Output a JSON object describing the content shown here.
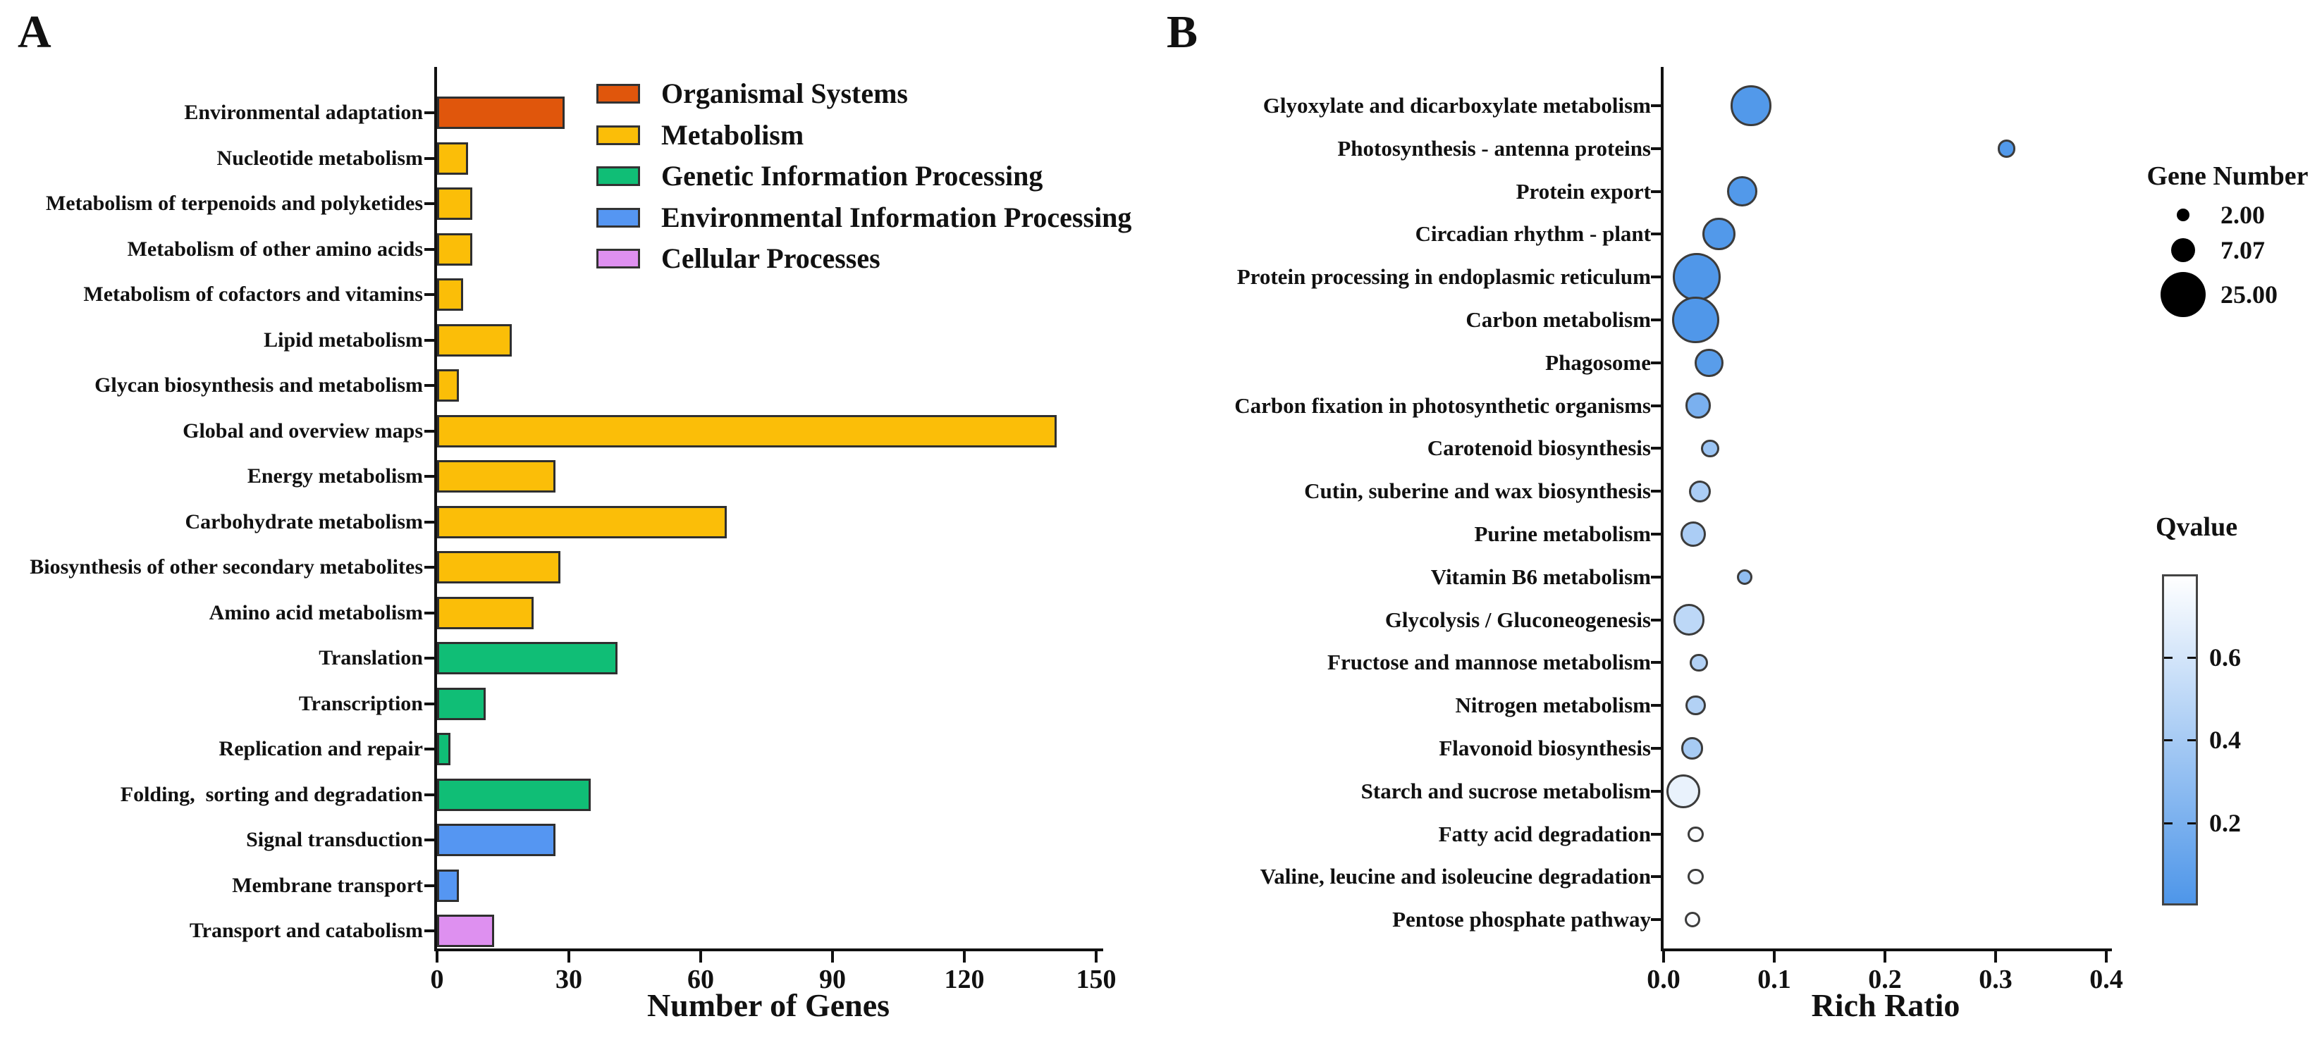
{
  "chart_data": [
    {
      "type": "bar",
      "panel": "A",
      "orientation": "horizontal",
      "xlabel": "Number of Genes",
      "xlim": [
        0,
        150
      ],
      "x_ticks": [
        "0",
        "30",
        "60",
        "90",
        "120",
        "150"
      ],
      "grid": false,
      "legend_position": "upper-right-inside",
      "legend": [
        {
          "label": "Organismal Systems",
          "color": "#e0560c"
        },
        {
          "label": "Metabolism",
          "color": "#fbbe08"
        },
        {
          "label": "Genetic Information Processing",
          "color": "#10be76"
        },
        {
          "label": "Environmental Information Processing",
          "color": "#5596f2"
        },
        {
          "label": "Cellular Processes",
          "color": "#de90f0"
        }
      ],
      "categories": [
        "Environmental adaptation",
        "Nucleotide metabolism",
        "Metabolism of terpenoids and polyketides",
        "Metabolism of other amino acids",
        "Metabolism of cofactors and vitamins",
        "Lipid metabolism",
        "Glycan biosynthesis and metabolism",
        "Global and overview maps",
        "Energy metabolism",
        "Carbohydrate metabolism",
        "Biosynthesis of other secondary metabolites",
        "Amino acid metabolism",
        "Translation",
        "Transcription",
        "Replication and repair",
        "Folding,  sorting and degradation",
        "Signal transduction",
        "Membrane transport",
        "Transport and catabolism"
      ],
      "values": [
        29,
        7,
        8,
        8,
        6,
        17,
        5,
        141,
        27,
        66,
        28,
        22,
        41,
        11,
        3,
        35,
        27,
        5,
        13
      ],
      "category_groups": [
        0,
        1,
        1,
        1,
        1,
        1,
        1,
        1,
        1,
        1,
        1,
        1,
        2,
        2,
        2,
        2,
        3,
        3,
        4
      ]
    },
    {
      "type": "scatter",
      "panel": "B",
      "xlabel": "Rich Ratio",
      "xlim": [
        0,
        0.4
      ],
      "x_ticks": [
        "0.0",
        "0.1",
        "0.2",
        "0.3",
        "0.4"
      ],
      "grid": false,
      "points": [
        {
          "label": "Glyoxylate and dicarboxylate metabolism",
          "rich_ratio": 0.079,
          "gene_number": 20,
          "qvalue": 0.02
        },
        {
          "label": "Photosynthesis - antenna proteins",
          "rich_ratio": 0.31,
          "gene_number": 4,
          "qvalue": 0.02
        },
        {
          "label": "Protein export",
          "rich_ratio": 0.071,
          "gene_number": 11,
          "qvalue": 0.02
        },
        {
          "label": "Circadian rhythm - plant",
          "rich_ratio": 0.05,
          "gene_number": 13,
          "qvalue": 0.02
        },
        {
          "label": "Protein processing in endoplasmic reticulum",
          "rich_ratio": 0.03,
          "gene_number": 28,
          "qvalue": 0.01
        },
        {
          "label": "Carbon metabolism",
          "rich_ratio": 0.029,
          "gene_number": 27,
          "qvalue": 0.01
        },
        {
          "label": "Phagosome",
          "rich_ratio": 0.041,
          "gene_number": 10,
          "qvalue": 0.05
        },
        {
          "label": "Carbon fixation in photosynthetic organisms",
          "rich_ratio": 0.031,
          "gene_number": 8,
          "qvalue": 0.2
        },
        {
          "label": "Carotenoid biosynthesis",
          "rich_ratio": 0.042,
          "gene_number": 4,
          "qvalue": 0.35
        },
        {
          "label": "Cutin, suberine and wax biosynthesis",
          "rich_ratio": 0.033,
          "gene_number": 6,
          "qvalue": 0.42
        },
        {
          "label": "Purine metabolism",
          "rich_ratio": 0.027,
          "gene_number": 8,
          "qvalue": 0.42
        },
        {
          "label": "Vitamin B6 metabolism",
          "rich_ratio": 0.073,
          "gene_number": 3,
          "qvalue": 0.3
        },
        {
          "label": "Glycolysis / Gluconeogenesis",
          "rich_ratio": 0.023,
          "gene_number": 12,
          "qvalue": 0.5
        },
        {
          "label": "Fructose and mannose metabolism",
          "rich_ratio": 0.032,
          "gene_number": 4,
          "qvalue": 0.45
        },
        {
          "label": "Nitrogen metabolism",
          "rich_ratio": 0.029,
          "gene_number": 5,
          "qvalue": 0.45
        },
        {
          "label": "Flavonoid biosynthesis",
          "rich_ratio": 0.026,
          "gene_number": 6,
          "qvalue": 0.4
        },
        {
          "label": "Starch and sucrose metabolism",
          "rich_ratio": 0.018,
          "gene_number": 14,
          "qvalue": 0.7
        },
        {
          "label": "Fatty acid degradation",
          "rich_ratio": 0.029,
          "gene_number": 3,
          "qvalue": 0.78
        },
        {
          "label": "Valine, leucine and isoleucine degradation",
          "rich_ratio": 0.029,
          "gene_number": 3,
          "qvalue": 0.78
        },
        {
          "label": "Pentose phosphate pathway",
          "rich_ratio": 0.026,
          "gene_number": 3,
          "qvalue": 0.78
        }
      ],
      "size_legend": {
        "title": "Gene Number",
        "items": [
          {
            "label": "2.00",
            "value": 2
          },
          {
            "label": "7.07",
            "value": 7.07
          },
          {
            "label": "25.00",
            "value": 25
          }
        ]
      },
      "color_legend": {
        "title": "Qvalue",
        "ticks": [
          {
            "label": "0.6",
            "value": 0.6
          },
          {
            "label": "0.4",
            "value": 0.4
          },
          {
            "label": "0.2",
            "value": 0.2
          }
        ],
        "domain": [
          0,
          0.8
        ],
        "min_color": "#4e96e9",
        "max_color": "#ffffff"
      }
    }
  ]
}
